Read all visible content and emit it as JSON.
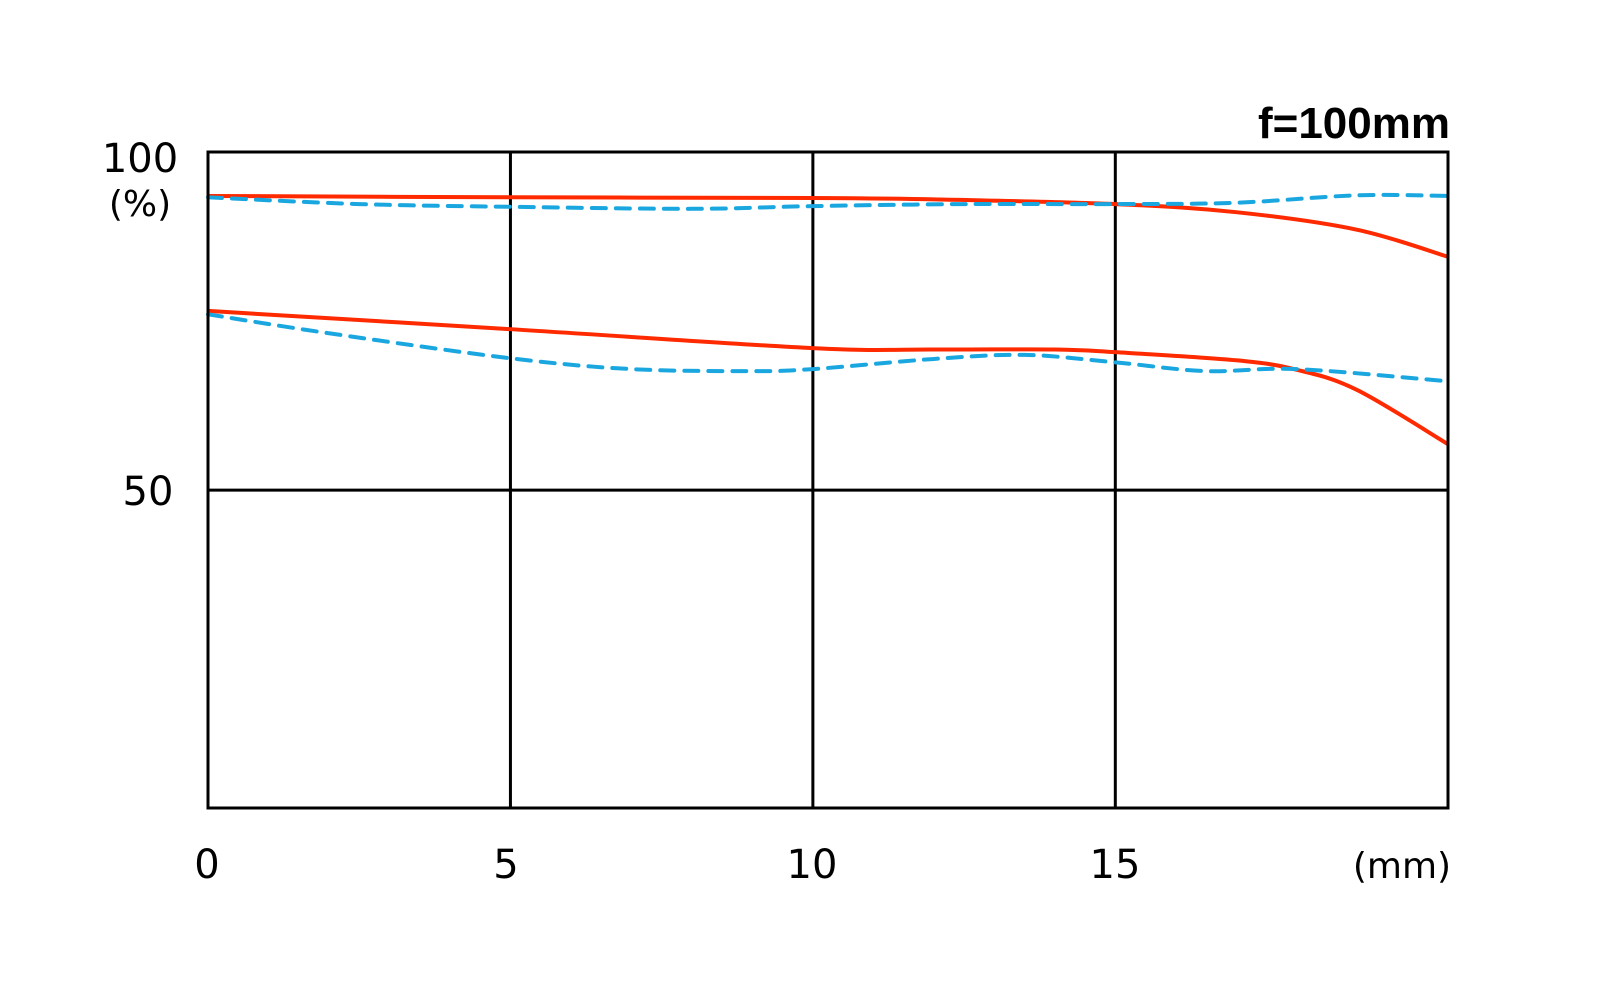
{
  "chart_data": {
    "type": "line",
    "title": "f=100mm",
    "xlabel": "(mm)",
    "ylabel": "(%)",
    "xlim": [
      0,
      20.5
    ],
    "ylim": [
      3,
      100
    ],
    "x_ticks": [
      "0",
      "5",
      "10",
      "15"
    ],
    "y_ticks": [
      "100",
      "50"
    ],
    "grid": true,
    "colors": {
      "solid": "#ff2a00",
      "dashed": "#1aa7e0"
    },
    "series": [
      {
        "style": "solid",
        "color": "#ff2a00",
        "x": [
          0,
          5,
          10,
          12,
          15,
          17,
          19,
          20.5
        ],
        "y": [
          93.5,
          93.3,
          93.2,
          93.0,
          92.3,
          91.1,
          88.5,
          84.5
        ]
      },
      {
        "style": "dashed",
        "color": "#1aa7e0",
        "x": [
          0,
          2.5,
          5,
          8,
          10,
          12.5,
          15,
          17,
          19,
          20.5
        ],
        "y": [
          93.3,
          92.3,
          91.9,
          91.6,
          92.0,
          92.3,
          92.3,
          92.5,
          93.6,
          93.5
        ]
      },
      {
        "style": "solid",
        "color": "#ff2a00",
        "x": [
          0,
          5,
          10,
          12,
          14,
          15,
          17,
          18,
          19,
          20.5
        ],
        "y": [
          76.5,
          73.8,
          71.0,
          70.8,
          70.8,
          70.4,
          69.2,
          67.8,
          64.8,
          56.8
        ]
      },
      {
        "style": "dashed",
        "color": "#1aa7e0",
        "x": [
          0,
          2,
          5,
          7,
          9,
          10,
          12,
          13.5,
          15,
          16.5,
          18,
          20.5
        ],
        "y": [
          76.0,
          73.2,
          69.5,
          67.9,
          67.6,
          67.9,
          69.4,
          70.0,
          68.9,
          67.6,
          67.9,
          66.1
        ]
      }
    ]
  }
}
